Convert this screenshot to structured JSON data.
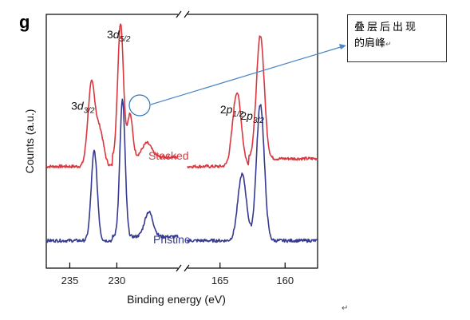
{
  "panel_letter": "g",
  "note": {
    "line1": "叠层后出现",
    "line2": "的肩峰",
    "mark": "↵"
  },
  "page_mark": "↵",
  "chart_data": {
    "type": "line",
    "xlabel": "Binding energy (eV)",
    "ylabel": "Counts (a.u.)",
    "broken_x_axis": true,
    "x_reversed": true,
    "segments": [
      {
        "name": "left",
        "xlim": [
          237.5,
          223.5
        ],
        "ticks": [
          235,
          230
        ]
      },
      {
        "name": "right",
        "xlim": [
          167.5,
          157.5
        ],
        "ticks": [
          165,
          160
        ]
      }
    ],
    "peak_labels": [
      {
        "main": "3d",
        "sub": "3/2",
        "x": 233.1,
        "segment": "left",
        "trace": "Stacked"
      },
      {
        "main": "3d",
        "sub": "5/2",
        "x": 229.8,
        "segment": "left",
        "trace": "Stacked"
      },
      {
        "main": "2p",
        "sub": "1/2",
        "x": 163.6,
        "segment": "right",
        "trace": "Stacked"
      },
      {
        "main": "2p",
        "sub": "3/2",
        "x": 162.4,
        "segment": "right",
        "trace": "Stacked"
      }
    ],
    "series": [
      {
        "name": "Stacked",
        "color": "#d9363e",
        "baseline": 0.95,
        "left_peaks": [
          [
            232.7,
            1.05,
            0.38
          ],
          [
            231.8,
            0.45,
            0.4
          ],
          [
            229.6,
            1.72,
            0.3
          ],
          [
            228.6,
            0.55,
            0.28
          ],
          [
            226.8,
            0.18,
            0.5
          ]
        ],
        "right_peaks": [
          [
            163.7,
            0.95,
            0.33
          ],
          [
            161.9,
            1.58,
            0.3
          ]
        ]
      },
      {
        "name": "Pristine",
        "color": "#35398f",
        "baseline": 0.0,
        "left_peaks": [
          [
            232.4,
            1.15,
            0.32
          ],
          [
            229.4,
            1.75,
            0.28
          ],
          [
            226.6,
            0.32,
            0.45
          ]
        ],
        "right_peaks": [
          [
            163.3,
            0.85,
            0.33
          ],
          [
            161.9,
            1.75,
            0.3
          ]
        ]
      }
    ],
    "ylim": [
      -0.25,
      3.0
    ]
  }
}
